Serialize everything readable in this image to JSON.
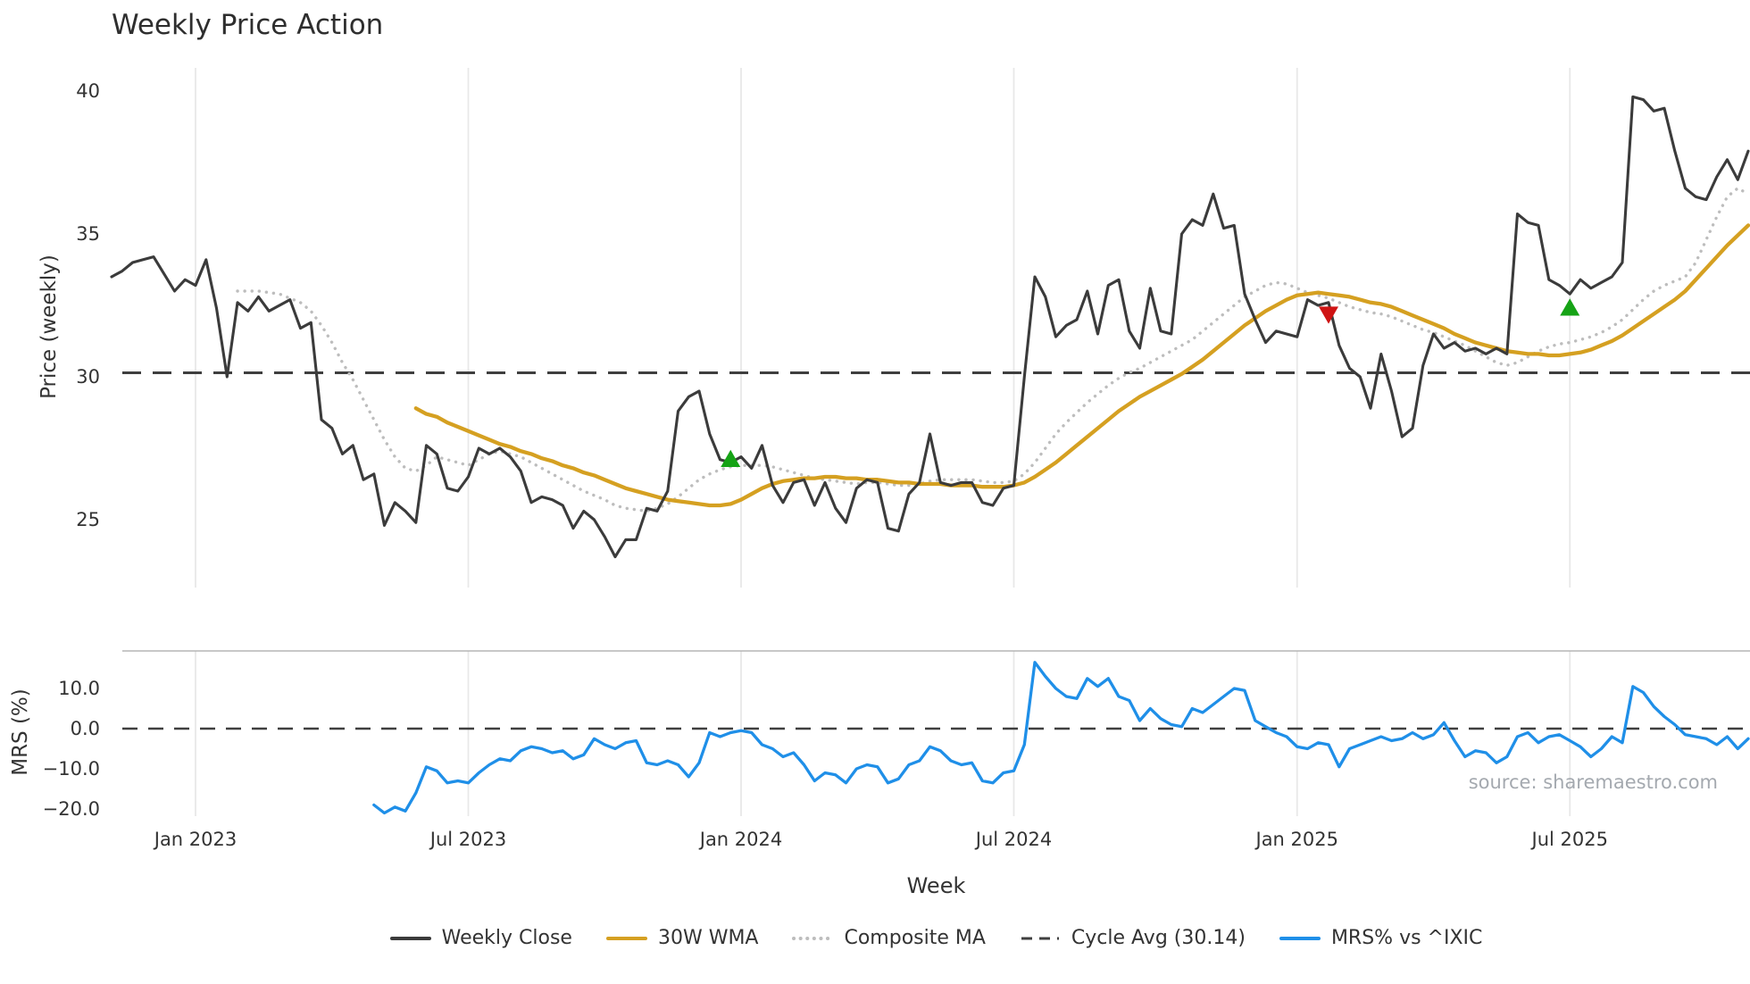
{
  "chart_data": {
    "type": "line",
    "title": "Weekly Price Action",
    "xlabel": "Week",
    "source_note": "source: sharemaestro.com",
    "legend_position": "bottom",
    "grid": {
      "vertical": true,
      "horizontal": false,
      "color": "#e8e8e8"
    },
    "panels": [
      {
        "name": "price",
        "ylabel": "Price (weekly)",
        "ylim": [
          22.9,
          40.6
        ],
        "yticks": [
          {
            "value": 40,
            "label": "40"
          },
          {
            "value": 35,
            "label": "35"
          },
          {
            "value": 30,
            "label": "30"
          },
          {
            "value": 25,
            "label": "25"
          }
        ]
      },
      {
        "name": "mrs",
        "ylabel": "MRS (%)",
        "ylim": [
          -23,
          19
        ],
        "reference_level": 0,
        "yticks": [
          {
            "value": 10,
            "label": "10.0"
          },
          {
            "value": 0,
            "label": "0.0"
          },
          {
            "value": -10,
            "label": "−10.0"
          },
          {
            "value": -20,
            "label": "−20.0"
          }
        ]
      }
    ],
    "x_axis": {
      "unit": "week",
      "weeks_total": 157,
      "ticks": [
        {
          "week": 8,
          "label": "Jan 2023"
        },
        {
          "week": 34,
          "label": "Jul 2023"
        },
        {
          "week": 60,
          "label": "Jan 2024"
        },
        {
          "week": 86,
          "label": "Jul 2024"
        },
        {
          "week": 113,
          "label": "Jan 2025"
        },
        {
          "week": 139,
          "label": "Jul 2025"
        }
      ]
    },
    "cycle_avg": 30.14,
    "marker_colors": {
      "buy": "#16a316",
      "sell": "#cf1414"
    },
    "markers": [
      {
        "week": 59,
        "value": 27.1,
        "type": "buy"
      },
      {
        "week": 116,
        "value": 32.2,
        "type": "sell"
      },
      {
        "week": 139,
        "value": 32.4,
        "type": "buy"
      }
    ],
    "series": [
      {
        "id": "weekly_close",
        "name": "Weekly Close",
        "color": "#3b3b3b",
        "style": "solid",
        "panel": "price",
        "values": [
          33.5,
          33.7,
          34.0,
          34.1,
          34.2,
          33.6,
          33.0,
          33.4,
          33.2,
          34.1,
          32.4,
          30.0,
          32.6,
          32.3,
          32.8,
          32.3,
          32.5,
          32.7,
          31.7,
          31.9,
          28.5,
          28.2,
          27.3,
          27.6,
          26.4,
          26.6,
          24.8,
          25.6,
          25.3,
          24.9,
          27.6,
          27.3,
          26.1,
          26.0,
          26.5,
          27.5,
          27.3,
          27.5,
          27.2,
          26.7,
          25.6,
          25.8,
          25.7,
          25.5,
          24.7,
          25.3,
          25.0,
          24.4,
          23.7,
          24.3,
          24.3,
          25.4,
          25.3,
          26.0,
          28.8,
          29.3,
          29.5,
          28.0,
          27.1,
          27.0,
          27.2,
          26.8,
          27.6,
          26.2,
          25.6,
          26.3,
          26.4,
          25.5,
          26.3,
          25.4,
          24.9,
          26.1,
          26.4,
          26.3,
          24.7,
          24.6,
          25.9,
          26.3,
          28.0,
          26.3,
          26.2,
          26.3,
          26.3,
          25.6,
          25.5,
          26.1,
          26.2,
          30.0,
          33.5,
          32.8,
          31.4,
          31.8,
          32.0,
          33.0,
          31.5,
          33.2,
          33.4,
          31.6,
          31.0,
          33.1,
          31.6,
          31.5,
          35.0,
          35.5,
          35.3,
          36.4,
          35.2,
          35.3,
          32.9,
          32.0,
          31.2,
          31.6,
          31.5,
          31.4,
          32.7,
          32.5,
          32.6,
          31.1,
          30.3,
          30.0,
          28.9,
          30.8,
          29.5,
          27.9,
          28.2,
          30.4,
          31.5,
          31.0,
          31.2,
          30.9,
          31.0,
          30.8,
          31.0,
          30.8,
          35.7,
          35.4,
          35.3,
          33.4,
          33.2,
          32.9,
          33.4,
          33.1,
          33.3,
          33.5,
          34.0,
          39.8,
          39.7,
          39.3,
          39.4,
          37.9,
          36.6,
          36.3,
          36.2,
          37.0,
          37.6,
          36.9,
          37.9
        ]
      },
      {
        "id": "wma_30w",
        "name": "30W WMA",
        "color": "#d5a021",
        "style": "solid",
        "panel": "price",
        "values": [
          null,
          null,
          null,
          null,
          null,
          null,
          null,
          null,
          null,
          null,
          null,
          null,
          null,
          null,
          null,
          null,
          null,
          null,
          null,
          null,
          null,
          null,
          null,
          null,
          null,
          null,
          null,
          null,
          null,
          28.9,
          28.7,
          28.6,
          28.4,
          28.25,
          28.1,
          27.95,
          27.8,
          27.65,
          27.55,
          27.4,
          27.3,
          27.15,
          27.05,
          26.9,
          26.8,
          26.65,
          26.55,
          26.4,
          26.25,
          26.1,
          26.0,
          25.9,
          25.8,
          25.7,
          25.65,
          25.6,
          25.55,
          25.5,
          25.5,
          25.55,
          25.7,
          25.9,
          26.1,
          26.25,
          26.35,
          26.4,
          26.45,
          26.45,
          26.5,
          26.5,
          26.45,
          26.45,
          26.4,
          26.4,
          26.35,
          26.3,
          26.3,
          26.25,
          26.25,
          26.25,
          26.2,
          26.2,
          26.2,
          26.15,
          26.15,
          26.15,
          26.2,
          26.3,
          26.5,
          26.75,
          27.0,
          27.3,
          27.6,
          27.9,
          28.2,
          28.5,
          28.8,
          29.05,
          29.3,
          29.5,
          29.7,
          29.9,
          30.1,
          30.35,
          30.6,
          30.9,
          31.2,
          31.5,
          31.8,
          32.05,
          32.3,
          32.5,
          32.7,
          32.85,
          32.9,
          32.95,
          32.9,
          32.85,
          32.8,
          32.7,
          32.6,
          32.55,
          32.45,
          32.3,
          32.15,
          32.0,
          31.85,
          31.7,
          31.5,
          31.35,
          31.2,
          31.1,
          31.0,
          30.9,
          30.85,
          30.8,
          30.8,
          30.75,
          30.75,
          30.8,
          30.85,
          30.95,
          31.1,
          31.25,
          31.45,
          31.7,
          31.95,
          32.2,
          32.45,
          32.7,
          33.0,
          33.4,
          33.8,
          34.2,
          34.6,
          34.95,
          35.3
        ]
      },
      {
        "id": "composite_ma",
        "name": "Composite MA",
        "color": "#bdbdbd",
        "style": "dotted",
        "panel": "price",
        "values": [
          null,
          null,
          null,
          null,
          null,
          null,
          null,
          null,
          null,
          null,
          null,
          null,
          33.0,
          33.0,
          33.0,
          32.95,
          32.9,
          32.75,
          32.6,
          32.3,
          31.8,
          31.2,
          30.5,
          29.9,
          29.2,
          28.5,
          27.8,
          27.2,
          26.8,
          26.7,
          26.9,
          27.2,
          27.1,
          27.0,
          26.9,
          27.1,
          27.3,
          27.4,
          27.3,
          27.2,
          27.0,
          26.8,
          26.6,
          26.4,
          26.2,
          26.0,
          25.85,
          25.7,
          25.5,
          25.4,
          25.35,
          25.3,
          25.4,
          25.55,
          25.8,
          26.1,
          26.4,
          26.6,
          26.75,
          26.85,
          26.9,
          26.9,
          26.9,
          26.85,
          26.75,
          26.65,
          26.55,
          26.45,
          26.4,
          26.35,
          26.3,
          26.25,
          26.3,
          26.3,
          26.25,
          26.2,
          26.2,
          26.25,
          26.35,
          26.4,
          26.4,
          26.4,
          26.4,
          26.35,
          26.3,
          26.3,
          26.35,
          26.6,
          27.0,
          27.5,
          28.0,
          28.4,
          28.75,
          29.1,
          29.4,
          29.7,
          29.95,
          30.15,
          30.3,
          30.5,
          30.7,
          30.9,
          31.1,
          31.3,
          31.6,
          31.9,
          32.2,
          32.5,
          32.8,
          33.0,
          33.2,
          33.3,
          33.25,
          33.1,
          32.95,
          32.85,
          32.75,
          32.6,
          32.45,
          32.35,
          32.25,
          32.2,
          32.1,
          31.95,
          31.8,
          31.65,
          31.55,
          31.4,
          31.25,
          31.1,
          30.9,
          30.7,
          30.5,
          30.4,
          30.5,
          30.7,
          30.9,
          31.05,
          31.15,
          31.2,
          31.3,
          31.4,
          31.55,
          31.75,
          32.0,
          32.35,
          32.7,
          33.0,
          33.2,
          33.35,
          33.5,
          34.0,
          34.8,
          35.6,
          36.3,
          36.6,
          36.4
        ]
      },
      {
        "id": "cycle_avg",
        "name": "Cycle Avg (30.14)",
        "color": "#3f3f3f",
        "style": "dashed",
        "panel": "price",
        "value": 30.14
      },
      {
        "id": "mrs_pct",
        "name": "MRS% vs ^IXIC",
        "color": "#1f8fe8",
        "style": "solid",
        "panel": "mrs",
        "values": [
          null,
          null,
          null,
          null,
          null,
          null,
          null,
          null,
          null,
          null,
          null,
          null,
          null,
          null,
          null,
          null,
          null,
          null,
          null,
          null,
          null,
          null,
          null,
          null,
          null,
          -19,
          -21,
          -19.5,
          -20.5,
          -16,
          -9.5,
          -10.5,
          -13.5,
          -13,
          -13.5,
          -11,
          -9,
          -7.5,
          -8,
          -5.5,
          -4.5,
          -5,
          -6,
          -5.5,
          -7.5,
          -6.5,
          -2.5,
          -4,
          -5,
          -3.5,
          -3,
          -8.5,
          -9,
          -8,
          -9,
          -12,
          -8.5,
          -1,
          -2,
          -1,
          -0.5,
          -1,
          -4,
          -5,
          -7,
          -6,
          -9,
          -13,
          -11,
          -11.5,
          -13.5,
          -10,
          -9,
          -9.5,
          -13.5,
          -12.5,
          -9,
          -8,
          -4.5,
          -5.5,
          -8,
          -9,
          -8.5,
          -13,
          -13.5,
          -11,
          -10.5,
          -4,
          16.5,
          13,
          10,
          8,
          7.5,
          12.5,
          10.5,
          12.5,
          8,
          7,
          2,
          5,
          2.5,
          1,
          0.5,
          5,
          4,
          6,
          8,
          10,
          9.5,
          2,
          0.5,
          -1,
          -2,
          -4.5,
          -5,
          -3.5,
          -4,
          -9.5,
          -5,
          -4,
          -3,
          -2,
          -3,
          -2.5,
          -1,
          -2.5,
          -1.5,
          1.5,
          -3,
          -7,
          -5.5,
          -6,
          -8.5,
          -7,
          -2,
          -1,
          -3.5,
          -2,
          -1.5,
          -3,
          -4.5,
          -7,
          -5,
          -2,
          -3.5,
          10.5,
          9,
          5.5,
          3,
          1,
          -1.5,
          -2,
          -2.5,
          -4,
          -2,
          -5,
          -2.5
        ]
      }
    ]
  }
}
